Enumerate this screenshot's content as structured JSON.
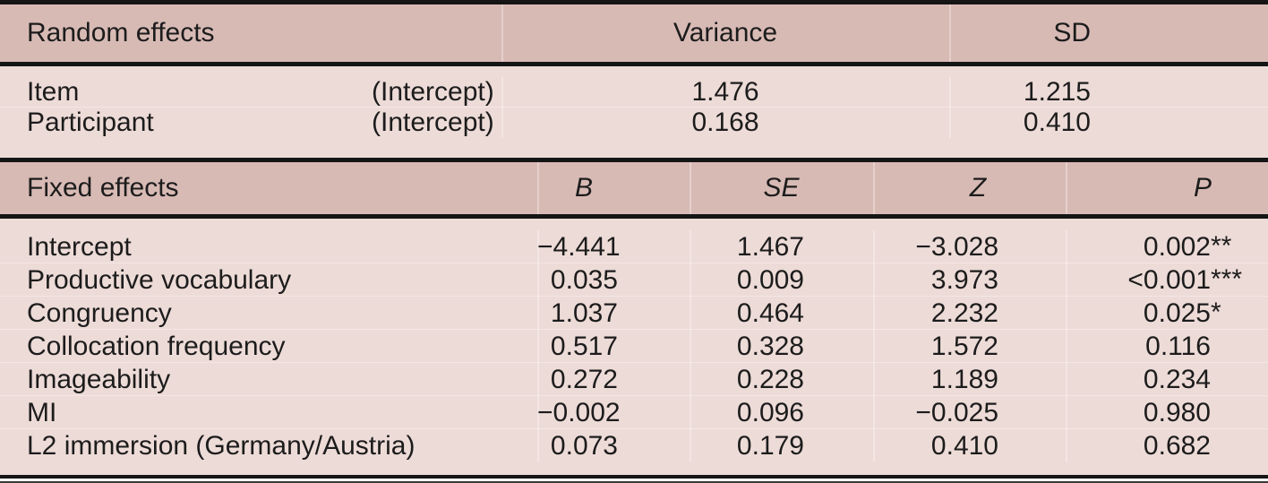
{
  "table": {
    "colors": {
      "header_bg": "#d8bab5",
      "body_bg": "#eddbd7",
      "rule": "#151515",
      "text": "#1c1c1c"
    },
    "random": {
      "header": {
        "label": "Random effects",
        "variance": "Variance",
        "sd": "SD"
      },
      "rows": [
        {
          "label": "Item",
          "term": "(Intercept)",
          "variance": "1.476",
          "sd": "1.215"
        },
        {
          "label": "Participant",
          "term": "(Intercept)",
          "variance": "0.168",
          "sd": "0.410"
        }
      ]
    },
    "fixed": {
      "header": {
        "label": "Fixed effects",
        "b": "B",
        "se": "SE",
        "z": "Z",
        "p": "P"
      },
      "rows": [
        {
          "label": "Intercept",
          "b": "−4.441",
          "se": "1.467",
          "z": "−3.028",
          "p": "0.002",
          "p_stars": "**"
        },
        {
          "label": "Productive vocabulary",
          "b": "0.035",
          "se": "0.009",
          "z": "3.973",
          "p": "<0.001",
          "p_stars": "***"
        },
        {
          "label": "Congruency",
          "b": "1.037",
          "se": "0.464",
          "z": "2.232",
          "p": "0.025",
          "p_stars": "*"
        },
        {
          "label": "Collocation frequency",
          "b": "0.517",
          "se": "0.328",
          "z": "1.572",
          "p": "0.116",
          "p_stars": ""
        },
        {
          "label": "Imageability",
          "b": "0.272",
          "se": "0.228",
          "z": "1.189",
          "p": "0.234",
          "p_stars": ""
        },
        {
          "label": "MI",
          "b": "−0.002",
          "se": "0.096",
          "z": "−0.025",
          "p": "0.980",
          "p_stars": ""
        },
        {
          "label": "L2 immersion (Germany/Austria)",
          "b": "0.073",
          "se": "0.179",
          "z": "0.410",
          "p": "0.682",
          "p_stars": ""
        }
      ]
    }
  }
}
